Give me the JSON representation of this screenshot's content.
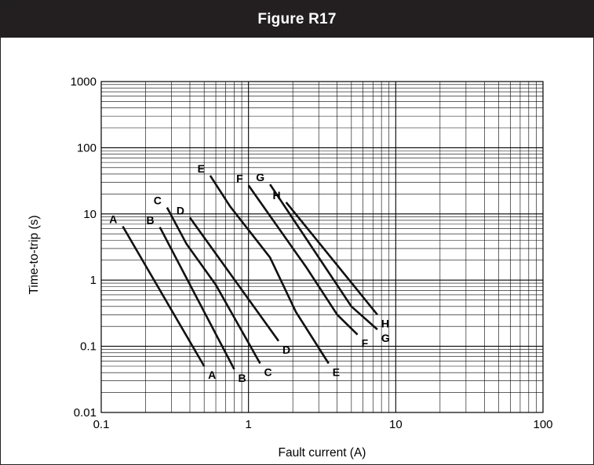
{
  "header": {
    "title": "Figure R17"
  },
  "chart_data": {
    "type": "line",
    "title": "Figure R17",
    "xlabel": "Fault current (A)",
    "ylabel": "Time-to-trip (s)",
    "xscale": "log",
    "yscale": "log",
    "xlim": [
      0.1,
      100
    ],
    "ylim": [
      0.01,
      1000
    ],
    "grid": true,
    "legend": "none",
    "x_tick_labels": [
      "0.1",
      "1",
      "10",
      "100"
    ],
    "y_tick_labels": [
      "0.01",
      "0.1",
      "1",
      "10",
      "100",
      "1000"
    ],
    "series": [
      {
        "name": "A",
        "x": [
          0.14,
          0.5
        ],
        "y": [
          6.5,
          0.05
        ]
      },
      {
        "name": "B",
        "x": [
          0.25,
          0.8
        ],
        "y": [
          6.3,
          0.045
        ]
      },
      {
        "name": "C",
        "x": [
          0.28,
          0.38,
          0.6,
          1.2
        ],
        "y": [
          12.5,
          3.5,
          0.85,
          0.055
        ]
      },
      {
        "name": "D",
        "x": [
          0.4,
          1.6
        ],
        "y": [
          8.8,
          0.12
        ]
      },
      {
        "name": "E",
        "x": [
          0.55,
          0.75,
          1.4,
          2.1,
          3.5
        ],
        "y": [
          38,
          13,
          2.2,
          0.33,
          0.055
        ]
      },
      {
        "name": "F",
        "x": [
          1.0,
          2.5,
          4.0,
          5.5
        ],
        "y": [
          27,
          1.5,
          0.3,
          0.15
        ]
      },
      {
        "name": "G",
        "x": [
          1.4,
          5.0,
          7.5
        ],
        "y": [
          28,
          0.4,
          0.18
        ]
      },
      {
        "name": "H",
        "x": [
          1.8,
          7.5
        ],
        "y": [
          15,
          0.3
        ]
      }
    ]
  }
}
